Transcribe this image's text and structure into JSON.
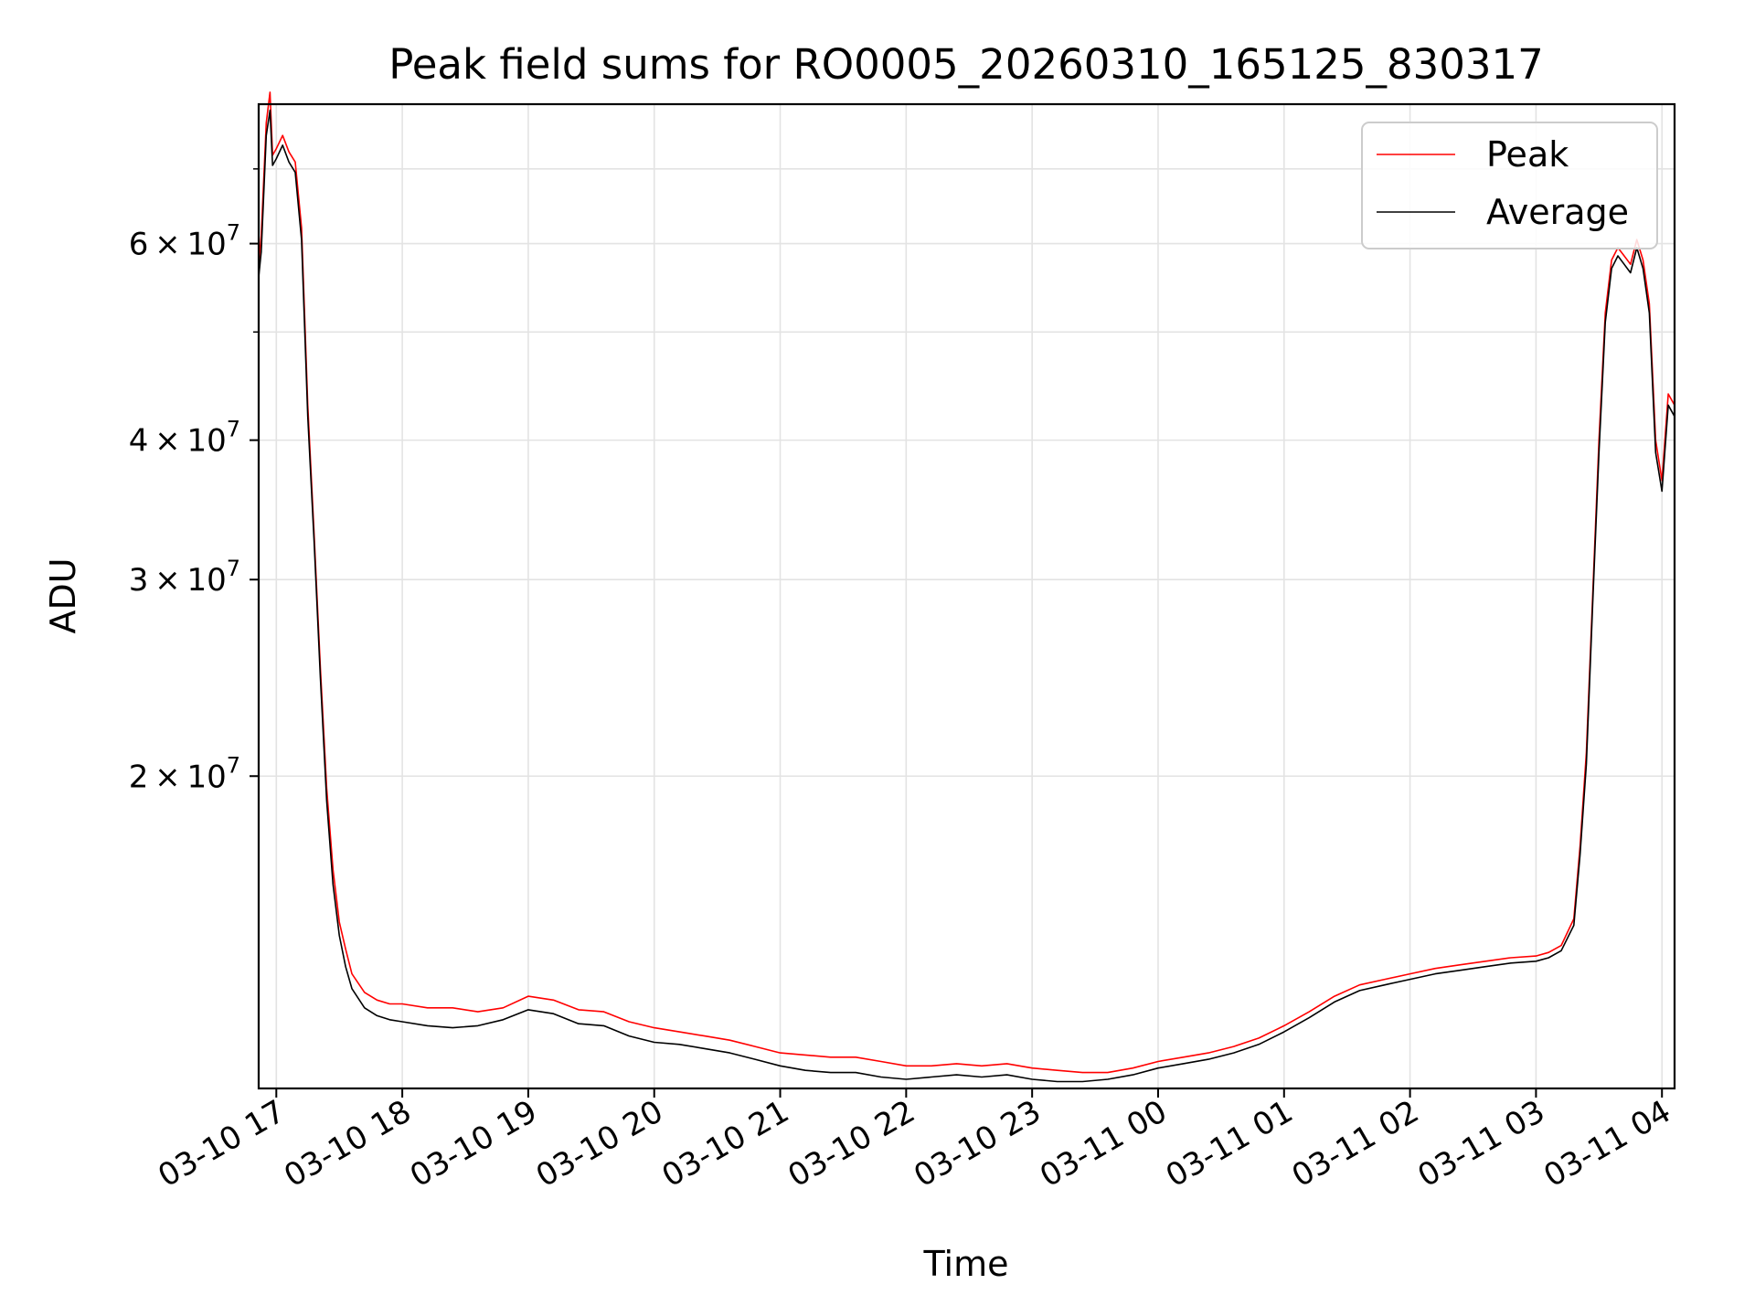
{
  "chart_data": {
    "type": "line",
    "title": "Peak field sums for RO0005_20260310_165125_830317",
    "xlabel": "Time",
    "ylabel": "ADU",
    "yscale": "log",
    "grid": true,
    "legend_position": "top-right",
    "x_unit": "hours since 03-10 16:00",
    "xlim": [
      0.86,
      12.1
    ],
    "ylim": [
      10500000,
      80000000
    ],
    "x_ticks": [
      {
        "value": 1,
        "label": "03-10 17"
      },
      {
        "value": 2,
        "label": "03-10 18"
      },
      {
        "value": 3,
        "label": "03-10 19"
      },
      {
        "value": 4,
        "label": "03-10 20"
      },
      {
        "value": 5,
        "label": "03-10 21"
      },
      {
        "value": 6,
        "label": "03-10 22"
      },
      {
        "value": 7,
        "label": "03-10 23"
      },
      {
        "value": 8,
        "label": "03-11 00"
      },
      {
        "value": 9,
        "label": "03-11 01"
      },
      {
        "value": 10,
        "label": "03-11 02"
      },
      {
        "value": 11,
        "label": "03-11 03"
      },
      {
        "value": 12,
        "label": "03-11 04"
      }
    ],
    "y_ticks": [
      {
        "value": 20000000,
        "base": "2 × 10",
        "exp": "7"
      },
      {
        "value": 30000000,
        "base": "3 × 10",
        "exp": "7"
      },
      {
        "value": 40000000,
        "base": "4 × 10",
        "exp": "7"
      },
      {
        "value": 60000000,
        "base": "6 × 10",
        "exp": "7"
      }
    ],
    "y_minor_ticks": [
      50000000,
      70000000
    ],
    "series": [
      {
        "name": "Peak",
        "color": "#ff0000",
        "x": [
          0.86,
          0.88,
          0.92,
          0.95,
          0.97,
          1.0,
          1.05,
          1.1,
          1.15,
          1.2,
          1.25,
          1.3,
          1.35,
          1.4,
          1.45,
          1.5,
          1.55,
          1.6,
          1.7,
          1.8,
          1.9,
          2.0,
          2.2,
          2.4,
          2.6,
          2.8,
          3.0,
          3.2,
          3.4,
          3.6,
          3.8,
          4.0,
          4.2,
          4.4,
          4.6,
          4.8,
          5.0,
          5.2,
          5.4,
          5.6,
          5.8,
          6.0,
          6.2,
          6.4,
          6.6,
          6.8,
          7.0,
          7.2,
          7.4,
          7.6,
          7.8,
          8.0,
          8.2,
          8.4,
          8.6,
          8.8,
          9.0,
          9.2,
          9.4,
          9.6,
          9.8,
          10.0,
          10.2,
          10.4,
          10.6,
          10.8,
          11.0,
          11.1,
          11.2,
          11.3,
          11.35,
          11.4,
          11.45,
          11.5,
          11.55,
          11.6,
          11.65,
          11.7,
          11.75,
          11.8,
          11.85,
          11.9,
          11.95,
          12.0,
          12.05,
          12.1
        ],
        "y": [
          57500000,
          61000000,
          77000000,
          82000000,
          72000000,
          73000000,
          75000000,
          72500000,
          71000000,
          62000000,
          43000000,
          33000000,
          25000000,
          19500000,
          16500000,
          14800000,
          14000000,
          13300000,
          12800000,
          12600000,
          12500000,
          12500000,
          12400000,
          12400000,
          12300000,
          12400000,
          12700000,
          12600000,
          12350000,
          12300000,
          12050000,
          11900000,
          11800000,
          11700000,
          11600000,
          11450000,
          11300000,
          11250000,
          11200000,
          11200000,
          11100000,
          11000000,
          11000000,
          11050000,
          11000000,
          11050000,
          10950000,
          10900000,
          10850000,
          10850000,
          10950000,
          11100000,
          11200000,
          11300000,
          11450000,
          11650000,
          11950000,
          12300000,
          12700000,
          13000000,
          13150000,
          13300000,
          13450000,
          13550000,
          13650000,
          13750000,
          13800000,
          13900000,
          14100000,
          14900000,
          17300000,
          21000000,
          29000000,
          40000000,
          52000000,
          58000000,
          59500000,
          58500000,
          57500000,
          60500000,
          58000000,
          53000000,
          40000000,
          36800000,
          44000000,
          43000000
        ]
      },
      {
        "name": "Average",
        "color": "#000000",
        "x": [
          0.86,
          0.88,
          0.92,
          0.95,
          0.97,
          1.0,
          1.05,
          1.1,
          1.15,
          1.2,
          1.25,
          1.3,
          1.35,
          1.4,
          1.45,
          1.5,
          1.55,
          1.6,
          1.7,
          1.8,
          1.9,
          2.0,
          2.2,
          2.4,
          2.6,
          2.8,
          3.0,
          3.2,
          3.4,
          3.6,
          3.8,
          4.0,
          4.2,
          4.4,
          4.6,
          4.8,
          5.0,
          5.2,
          5.4,
          5.6,
          5.8,
          6.0,
          6.2,
          6.4,
          6.6,
          6.8,
          7.0,
          7.2,
          7.4,
          7.6,
          7.8,
          8.0,
          8.2,
          8.4,
          8.6,
          8.8,
          9.0,
          9.2,
          9.4,
          9.6,
          9.8,
          10.0,
          10.2,
          10.4,
          10.6,
          10.8,
          11.0,
          11.1,
          11.2,
          11.3,
          11.35,
          11.4,
          11.45,
          11.5,
          11.55,
          11.6,
          11.65,
          11.7,
          11.75,
          11.8,
          11.85,
          11.9,
          11.95,
          12.0,
          12.05,
          12.1
        ],
        "y": [
          56000000,
          59000000,
          75000000,
          79000000,
          70500000,
          71500000,
          73500000,
          71000000,
          69500000,
          60500000,
          42000000,
          32500000,
          24500000,
          19000000,
          16000000,
          14400000,
          13500000,
          12900000,
          12400000,
          12200000,
          12100000,
          12050000,
          11950000,
          11900000,
          11950000,
          12100000,
          12350000,
          12250000,
          12000000,
          11950000,
          11700000,
          11550000,
          11500000,
          11400000,
          11300000,
          11150000,
          11000000,
          10900000,
          10850000,
          10850000,
          10750000,
          10700000,
          10750000,
          10800000,
          10750000,
          10800000,
          10700000,
          10650000,
          10650000,
          10700000,
          10800000,
          10950000,
          11050000,
          11150000,
          11300000,
          11500000,
          11800000,
          12150000,
          12550000,
          12850000,
          13000000,
          13150000,
          13300000,
          13400000,
          13500000,
          13600000,
          13650000,
          13750000,
          13950000,
          14700000,
          17000000,
          20500000,
          28500000,
          39000000,
          51000000,
          57000000,
          58500000,
          57500000,
          56500000,
          59500000,
          57000000,
          52000000,
          39000000,
          36000000,
          43000000,
          42000000
        ]
      }
    ]
  }
}
